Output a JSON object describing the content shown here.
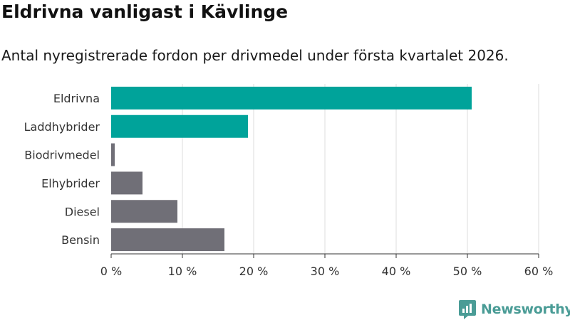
{
  "title": "Eldrivna vanligast i Kävlinge",
  "subtitle": "Antal nyregistrerade fordon per drivmedel under första kvartalet 2026.",
  "brand": {
    "name": "Newsworthy",
    "color": "#4a9c96"
  },
  "colors": {
    "highlight": "#00a39a",
    "default": "#706f77",
    "grid": "#dddddd",
    "axis": "#333333"
  },
  "chart_data": {
    "type": "bar",
    "orientation": "horizontal",
    "categories": [
      "Eldrivna",
      "Laddhybrider",
      "Biodrivmedel",
      "Elhybrider",
      "Diesel",
      "Bensin"
    ],
    "values": [
      50.6,
      19.2,
      0.5,
      4.4,
      9.3,
      15.9
    ],
    "highlighted": [
      true,
      true,
      false,
      false,
      false,
      false
    ],
    "xlim": [
      0,
      60
    ],
    "xticks": [
      0,
      10,
      20,
      30,
      40,
      50,
      60
    ],
    "tick_labels": [
      "0 %",
      "10 %",
      "20 %",
      "30 %",
      "40 %",
      "50 %",
      "60 %"
    ],
    "grid": true
  }
}
